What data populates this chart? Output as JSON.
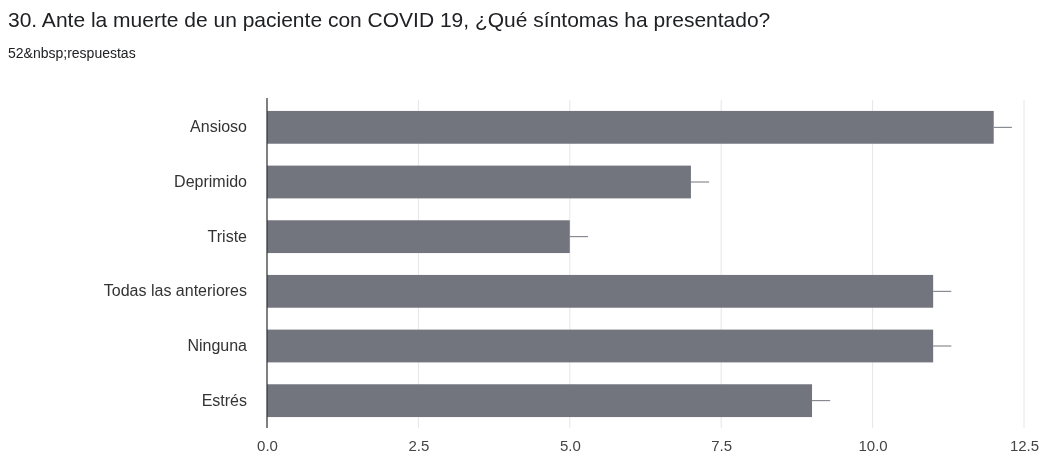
{
  "chart_data": {
    "type": "bar",
    "orientation": "horizontal",
    "title": "30. Ante la muerte de un paciente con COVID 19, ¿Qué síntomas ha presentado?",
    "subtitle": "52&nbsp;respuestas",
    "categories": [
      "Ansioso",
      "Deprimido",
      "Triste",
      "Todas las anteriores",
      "Ninguna",
      "Estrés"
    ],
    "values": [
      12,
      7,
      5,
      11,
      11,
      9
    ],
    "errors": [
      [
        12,
        12.3
      ],
      [
        7,
        7.3
      ],
      [
        5,
        5.3
      ],
      [
        11,
        11.3
      ],
      [
        11,
        11.3
      ],
      [
        9,
        9.3
      ]
    ],
    "color": "#72757d",
    "xlim": [
      0,
      12.5
    ],
    "xticks": [
      {
        "value": 0,
        "label": "0.0"
      },
      2.5,
      {
        "value": 5,
        "label": "5.0"
      },
      7.5,
      {
        "value": 10,
        "label": "10.0"
      },
      12.5
    ],
    "grid": "x"
  }
}
